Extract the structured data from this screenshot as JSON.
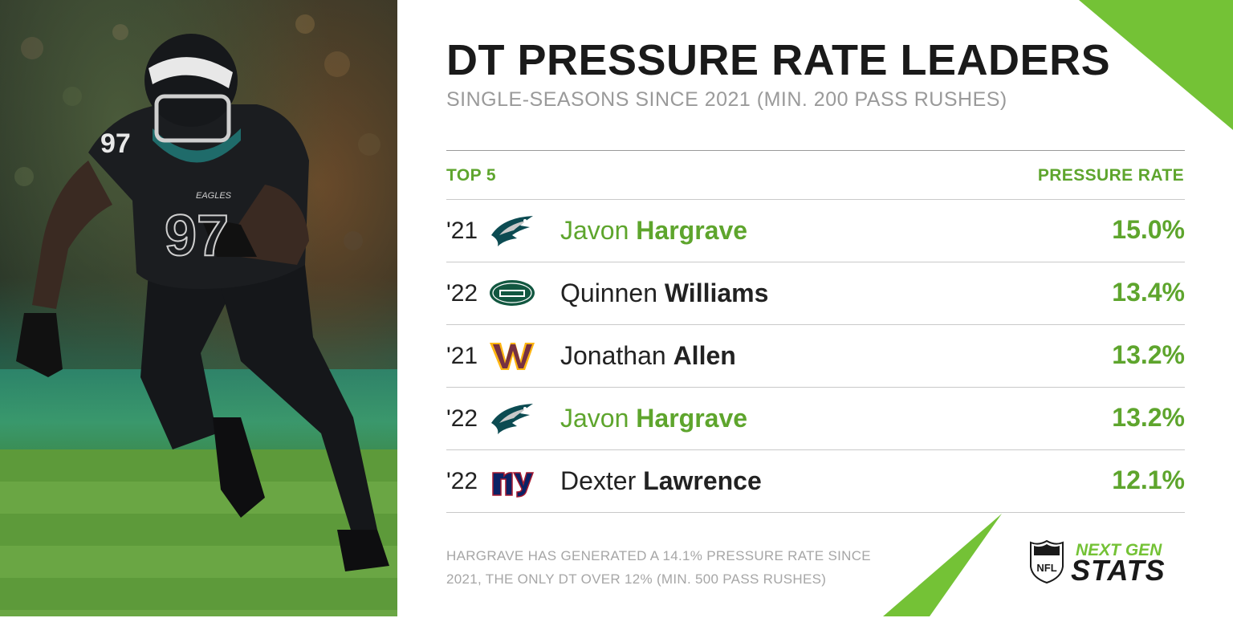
{
  "header": {
    "title": "DT PRESSURE RATE LEADERS",
    "subtitle": "SINGLE-SEASONS SINCE 2021 (MIN. 200 PASS RUSHES)"
  },
  "table": {
    "left_header": "TOP 5",
    "right_header": "PRESSURE RATE",
    "rows": [
      {
        "year": "'21",
        "team_logo": "eagles-logo",
        "first": "Javon",
        "last": "Hargrave",
        "rate": "15.0%",
        "highlight": true
      },
      {
        "year": "'22",
        "team_logo": "jets-logo",
        "first": "Quinnen",
        "last": "Williams",
        "rate": "13.4%",
        "highlight": false
      },
      {
        "year": "'21",
        "team_logo": "commanders-logo",
        "first": "Jonathan",
        "last": "Allen",
        "rate": "13.2%",
        "highlight": false
      },
      {
        "year": "'22",
        "team_logo": "eagles-logo",
        "first": "Javon",
        "last": "Hargrave",
        "rate": "13.2%",
        "highlight": true
      },
      {
        "year": "'22",
        "team_logo": "giants-logo",
        "first": "Dexter",
        "last": "Lawrence",
        "rate": "12.1%",
        "highlight": false
      }
    ]
  },
  "footnote": {
    "line1": "HARGRAVE HAS GENERATED A 14.1% PRESSURE RATE SINCE",
    "line2": "2021, THE ONLY DT OVER 12% (MIN. 500 PASS RUSHES)"
  },
  "branding": {
    "shield_text": "NFL",
    "next": "NEXT GEN",
    "stats": "STATS"
  },
  "photo": {
    "jersey_number": "97",
    "jersey_team": "EAGLES"
  },
  "colors": {
    "accent_green": "#5ea52d",
    "triangle_green": "#74c236",
    "title_dark": "#1a1a1a",
    "subtitle_gray": "#9a9a9a"
  }
}
